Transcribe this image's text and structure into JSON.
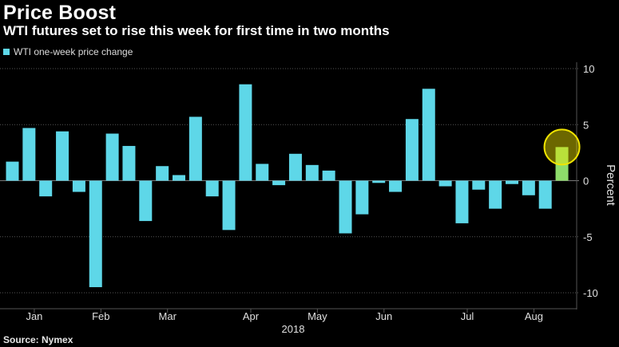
{
  "title": "Price Boost",
  "subtitle": "WTI futures set to rise this week for first time in two months",
  "source": "Source: Nymex",
  "colors": {
    "bar": "#5ed7e8",
    "highlight_fill": "#8ddc6a",
    "highlight_ring": "#f0e400",
    "grid": "#555555",
    "zero_line": "#777777"
  },
  "chart_data": {
    "type": "bar",
    "title": "Price Boost",
    "subtitle": "WTI futures set to rise this week for first time in two months",
    "legend": "WTI one-week price change",
    "legend_position": "top-left",
    "ylabel": "Percent",
    "y_axis_side": "right",
    "ylim": [
      -11,
      10
    ],
    "yticks": [
      10,
      5,
      0,
      -5,
      -10
    ],
    "grid": true,
    "x_tick_labels": [
      "Jan",
      "Feb",
      "Mar",
      "Apr",
      "May",
      "Jun",
      "Jul",
      "Aug"
    ],
    "x_tick_weeks": [
      1,
      5,
      9,
      14,
      18,
      22,
      27,
      31
    ],
    "x_year_label": "2018",
    "series": [
      {
        "name": "WTI one-week price change",
        "values": [
          1.7,
          4.7,
          -1.4,
          4.4,
          -1.0,
          -9.5,
          4.2,
          3.1,
          -3.6,
          1.3,
          0.5,
          5.7,
          -1.4,
          -4.4,
          8.6,
          1.5,
          -0.4,
          2.4,
          1.4,
          0.9,
          -4.7,
          -3.0,
          -0.2,
          -1.0,
          5.5,
          8.2,
          -0.5,
          -3.8,
          -0.8,
          -2.5,
          -0.3,
          -1.3,
          -2.5,
          3.0
        ]
      }
    ],
    "highlight_index": 33
  }
}
